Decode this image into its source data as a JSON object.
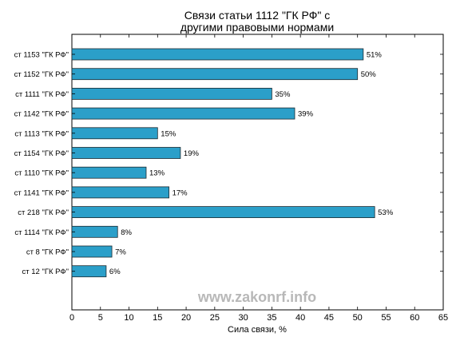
{
  "chart_data": {
    "type": "bar",
    "orientation": "horizontal",
    "title_lines": [
      "Связи статьи 1112 \"ГК РФ\" с",
      "другими правовыми нормами"
    ],
    "xlabel": "Сила связи, %",
    "ylabel": "",
    "xlim": [
      0,
      65
    ],
    "xticks": [
      "0",
      "5",
      "10",
      "15",
      "20",
      "25",
      "30",
      "35",
      "40",
      "45",
      "50",
      "55",
      "60",
      "65"
    ],
    "grid": false,
    "legend": "none",
    "bar_color": "#2b9fc9",
    "categories": [
      "ст 1153 \"ГК РФ\"",
      "ст 1152 \"ГК РФ\"",
      "ст 1111 \"ГК РФ\"",
      "ст 1142 \"ГК РФ\"",
      "ст 1113 \"ГК РФ\"",
      "ст 1154 \"ГК РФ\"",
      "ст 1110 \"ГК РФ\"",
      "ст 1141 \"ГК РФ\"",
      "ст 218 \"ГК РФ\"",
      "ст 1114 \"ГК РФ\"",
      "ст 8 \"ГК РФ\"",
      "ст 12 \"ГК РФ\""
    ],
    "values": [
      51,
      50,
      35,
      39,
      15,
      19,
      13,
      17,
      53,
      8,
      7,
      6
    ],
    "value_labels": [
      "51%",
      "50%",
      "35%",
      "39%",
      "15%",
      "19%",
      "13%",
      "17%",
      "53%",
      "8%",
      "7%",
      "6%"
    ]
  },
  "watermark": "www.zakonrf.info"
}
